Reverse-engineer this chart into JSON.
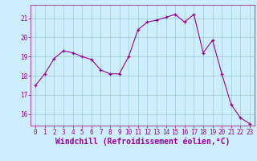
{
  "x": [
    0,
    1,
    2,
    3,
    4,
    5,
    6,
    7,
    8,
    9,
    10,
    11,
    12,
    13,
    14,
    15,
    16,
    17,
    18,
    19,
    20,
    21,
    22,
    23
  ],
  "y": [
    17.5,
    18.1,
    18.9,
    19.3,
    19.2,
    19.0,
    18.85,
    18.3,
    18.1,
    18.1,
    19.0,
    20.4,
    20.8,
    20.9,
    21.05,
    21.2,
    20.8,
    21.2,
    19.2,
    19.85,
    18.1,
    16.5,
    15.8,
    15.5
  ],
  "line_color": "#990099",
  "marker_color": "#990099",
  "bg_color": "#cceeff",
  "grid_color": "#99cccc",
  "xlabel": "Windchill (Refroidissement éolien,°C)",
  "xlabel_color": "#990099",
  "ylim": [
    15.4,
    21.7
  ],
  "xlim": [
    -0.5,
    23.5
  ],
  "yticks": [
    16,
    17,
    18,
    19,
    20,
    21
  ],
  "xticks": [
    0,
    1,
    2,
    3,
    4,
    5,
    6,
    7,
    8,
    9,
    10,
    11,
    12,
    13,
    14,
    15,
    16,
    17,
    18,
    19,
    20,
    21,
    22,
    23
  ],
  "tick_color": "#990099",
  "tick_fontsize": 5.5,
  "xlabel_fontsize": 7.0,
  "linewidth": 0.8,
  "markersize": 3.5
}
